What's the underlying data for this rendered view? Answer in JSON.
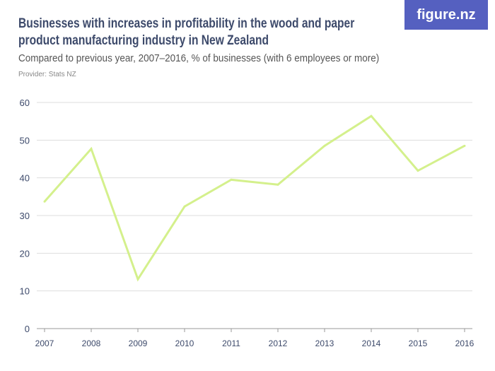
{
  "logo": "figure.nz",
  "chart_data": {
    "type": "line",
    "title": "Businesses with increases in profitability in the wood and paper product manufacturing industry in New Zealand",
    "subtitle": "Compared to previous year, 2007–2016, % of businesses (with 6 employees or more)",
    "provider": "Provider: Stats NZ",
    "categories": [
      "2007",
      "2008",
      "2009",
      "2010",
      "2011",
      "2012",
      "2013",
      "2014",
      "2015",
      "2016"
    ],
    "series": [
      {
        "name": "Businesses with increases in profitability",
        "values": [
          33.7,
          47.7,
          13.1,
          32.4,
          39.5,
          38.2,
          48.5,
          56.4,
          41.9,
          48.5
        ],
        "color": "#d4f08c"
      }
    ],
    "yticks": [
      "0",
      "10",
      "20",
      "30",
      "40",
      "50",
      "60"
    ],
    "ylim": [
      0,
      60
    ],
    "grid": true
  }
}
